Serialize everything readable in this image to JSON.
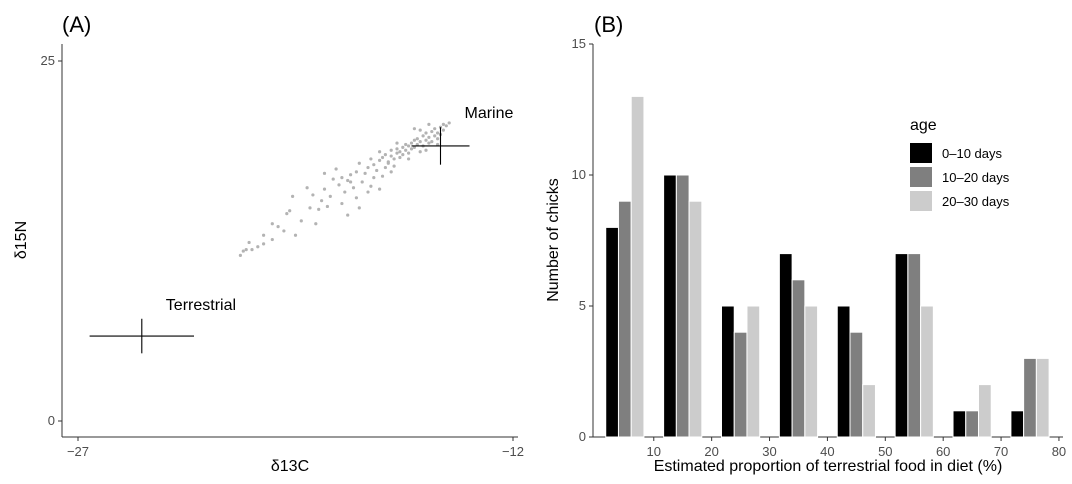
{
  "chart_data": [
    {
      "type": "scatter",
      "panel_label": "(A)",
      "xlabel": "δ13C",
      "ylabel": "δ15N",
      "xlim": [
        -27,
        -12
      ],
      "ylim": [
        0,
        25
      ],
      "x_ticks": [
        -27,
        -12
      ],
      "x_tick_labels": [
        "−27",
        "−12"
      ],
      "y_ticks": [
        0,
        25
      ],
      "y_tick_labels": [
        "0",
        "25"
      ],
      "grid": false,
      "point_color": "#b3b3b3",
      "sources": [
        {
          "label": "Terrestrial",
          "x": -24.8,
          "y": 5.9,
          "x_err": 1.8,
          "y_err": 1.2
        },
        {
          "label": "Marine",
          "x": -14.5,
          "y": 19.1,
          "x_err": 1.0,
          "y_err": 1.3
        }
      ],
      "points": [
        {
          "x": -21.4,
          "y": 11.5
        },
        {
          "x": -21.3,
          "y": 11.8
        },
        {
          "x": -21.2,
          "y": 11.9
        },
        {
          "x": -21.0,
          "y": 11.9
        },
        {
          "x": -20.8,
          "y": 12.1
        },
        {
          "x": -20.6,
          "y": 12.3
        },
        {
          "x": -21.1,
          "y": 12.4
        },
        {
          "x": -20.3,
          "y": 12.6
        },
        {
          "x": -20.6,
          "y": 12.9
        },
        {
          "x": -20.1,
          "y": 13.5
        },
        {
          "x": -19.5,
          "y": 12.9
        },
        {
          "x": -19.8,
          "y": 14.4
        },
        {
          "x": -19.7,
          "y": 14.6
        },
        {
          "x": -19.6,
          "y": 15.6
        },
        {
          "x": -19.3,
          "y": 13.9
        },
        {
          "x": -19.0,
          "y": 14.8
        },
        {
          "x": -18.8,
          "y": 13.7
        },
        {
          "x": -18.7,
          "y": 14.7
        },
        {
          "x": -18.6,
          "y": 15.3
        },
        {
          "x": -18.5,
          "y": 16.1
        },
        {
          "x": -18.4,
          "y": 14.9
        },
        {
          "x": -18.3,
          "y": 15.6
        },
        {
          "x": -18.2,
          "y": 16.8
        },
        {
          "x": -18.0,
          "y": 16.4
        },
        {
          "x": -18.1,
          "y": 17.5
        },
        {
          "x": -17.9,
          "y": 15.1
        },
        {
          "x": -17.8,
          "y": 15.9
        },
        {
          "x": -17.7,
          "y": 14.3
        },
        {
          "x": -17.7,
          "y": 16.7
        },
        {
          "x": -17.6,
          "y": 17.1
        },
        {
          "x": -17.5,
          "y": 16.2
        },
        {
          "x": -17.4,
          "y": 15.5
        },
        {
          "x": -17.4,
          "y": 17.3
        },
        {
          "x": -17.3,
          "y": 14.8
        },
        {
          "x": -17.2,
          "y": 16.6
        },
        {
          "x": -17.1,
          "y": 17.2
        },
        {
          "x": -17.0,
          "y": 15.9
        },
        {
          "x": -17.0,
          "y": 17.6
        },
        {
          "x": -16.9,
          "y": 16.3
        },
        {
          "x": -16.8,
          "y": 17.8
        },
        {
          "x": -16.8,
          "y": 16.9
        },
        {
          "x": -16.7,
          "y": 17.4
        },
        {
          "x": -16.6,
          "y": 16.1
        },
        {
          "x": -16.6,
          "y": 18.1
        },
        {
          "x": -16.5,
          "y": 17.0
        },
        {
          "x": -16.5,
          "y": 18.3
        },
        {
          "x": -16.4,
          "y": 17.6
        },
        {
          "x": -16.4,
          "y": 18.5
        },
        {
          "x": -16.3,
          "y": 17.9
        },
        {
          "x": -16.3,
          "y": 18.0
        },
        {
          "x": -16.2,
          "y": 18.4
        },
        {
          "x": -16.2,
          "y": 18.8
        },
        {
          "x": -16.1,
          "y": 17.7
        },
        {
          "x": -16.1,
          "y": 18.2
        },
        {
          "x": -16.0,
          "y": 18.6
        },
        {
          "x": -16.0,
          "y": 18.9
        },
        {
          "x": -15.9,
          "y": 18.3
        },
        {
          "x": -15.9,
          "y": 18.7
        },
        {
          "x": -15.8,
          "y": 18.5
        },
        {
          "x": -15.8,
          "y": 19.0
        },
        {
          "x": -15.7,
          "y": 18.8
        },
        {
          "x": -15.7,
          "y": 19.2
        },
        {
          "x": -15.6,
          "y": 18.6
        },
        {
          "x": -15.6,
          "y": 19.1
        },
        {
          "x": -15.5,
          "y": 18.9
        },
        {
          "x": -15.5,
          "y": 19.3
        },
        {
          "x": -15.4,
          "y": 19.0
        },
        {
          "x": -15.4,
          "y": 19.5
        },
        {
          "x": -15.3,
          "y": 19.2
        },
        {
          "x": -15.3,
          "y": 19.6
        },
        {
          "x": -15.2,
          "y": 18.7
        },
        {
          "x": -15.2,
          "y": 19.4
        },
        {
          "x": -15.1,
          "y": 19.8
        },
        {
          "x": -15.1,
          "y": 19.1
        },
        {
          "x": -15.0,
          "y": 19.5
        },
        {
          "x": -15.0,
          "y": 20.0
        },
        {
          "x": -14.9,
          "y": 19.3
        },
        {
          "x": -14.9,
          "y": 19.7
        },
        {
          "x": -14.8,
          "y": 20.1
        },
        {
          "x": -14.8,
          "y": 19.4
        },
        {
          "x": -14.7,
          "y": 19.8
        },
        {
          "x": -14.7,
          "y": 20.3
        },
        {
          "x": -14.6,
          "y": 19.6
        },
        {
          "x": -14.6,
          "y": 20.0
        },
        {
          "x": -14.5,
          "y": 19.9
        },
        {
          "x": -14.5,
          "y": 20.4
        },
        {
          "x": -14.4,
          "y": 20.2
        },
        {
          "x": -14.4,
          "y": 20.6
        },
        {
          "x": -14.3,
          "y": 20.5
        },
        {
          "x": -14.2,
          "y": 20.7
        },
        {
          "x": -16.6,
          "y": 18.7
        },
        {
          "x": -17.3,
          "y": 17.9
        },
        {
          "x": -17.9,
          "y": 16.9
        },
        {
          "x": -18.9,
          "y": 15.7
        },
        {
          "x": -19.9,
          "y": 13.2
        },
        {
          "x": -16.2,
          "y": 17.3
        },
        {
          "x": -15.6,
          "y": 18.2
        },
        {
          "x": -15.0,
          "y": 18.8
        },
        {
          "x": -14.9,
          "y": 20.6
        },
        {
          "x": -15.4,
          "y": 20.3
        },
        {
          "x": -16.9,
          "y": 18.2
        },
        {
          "x": -17.6,
          "y": 16.6
        },
        {
          "x": -18.5,
          "y": 17.2
        },
        {
          "x": -19.1,
          "y": 16.2
        },
        {
          "x": -20.3,
          "y": 13.7
        },
        {
          "x": -16.0,
          "y": 19.3
        },
        {
          "x": -15.2,
          "y": 20.2
        },
        {
          "x": -14.6,
          "y": 19.2
        }
      ]
    },
    {
      "type": "bar",
      "panel_label": "(B)",
      "xlabel": "Estimated proportion of terrestrial food in diet (%)",
      "ylabel": "Number of chicks",
      "xlim": [
        -0.5,
        80.7
      ],
      "ylim": [
        0,
        15
      ],
      "x_ticks": [
        10,
        20,
        30,
        40,
        50,
        60,
        70,
        80
      ],
      "y_ticks": [
        0,
        5,
        10,
        15
      ],
      "grid": false,
      "bin_centers": [
        5,
        15,
        25,
        35,
        45,
        55,
        65,
        75
      ],
      "legend": {
        "title": "age",
        "position": "top-right"
      },
      "series": [
        {
          "name": "0–10 days",
          "color": "#000000",
          "values": [
            8,
            10,
            5,
            7,
            5,
            7,
            1,
            1
          ]
        },
        {
          "name": "10–20 days",
          "color": "#7f7f7f",
          "values": [
            9,
            10,
            4,
            6,
            4,
            7,
            1,
            3
          ]
        },
        {
          "name": "20–30 days",
          "color": "#cccccc",
          "values": [
            13,
            9,
            5,
            5,
            2,
            5,
            2,
            3
          ]
        }
      ]
    }
  ]
}
